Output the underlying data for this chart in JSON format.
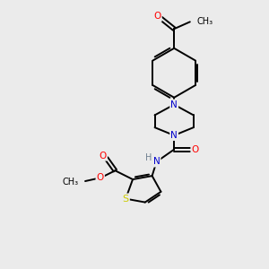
{
  "bg_color": "#ebebeb",
  "atom_colors": {
    "C": "#000000",
    "N": "#0000cc",
    "O": "#ff0000",
    "S": "#cccc00",
    "H": "#708090"
  },
  "figsize": [
    3.0,
    3.0
  ],
  "dpi": 100,
  "lw": 1.4,
  "fs": 7.5
}
